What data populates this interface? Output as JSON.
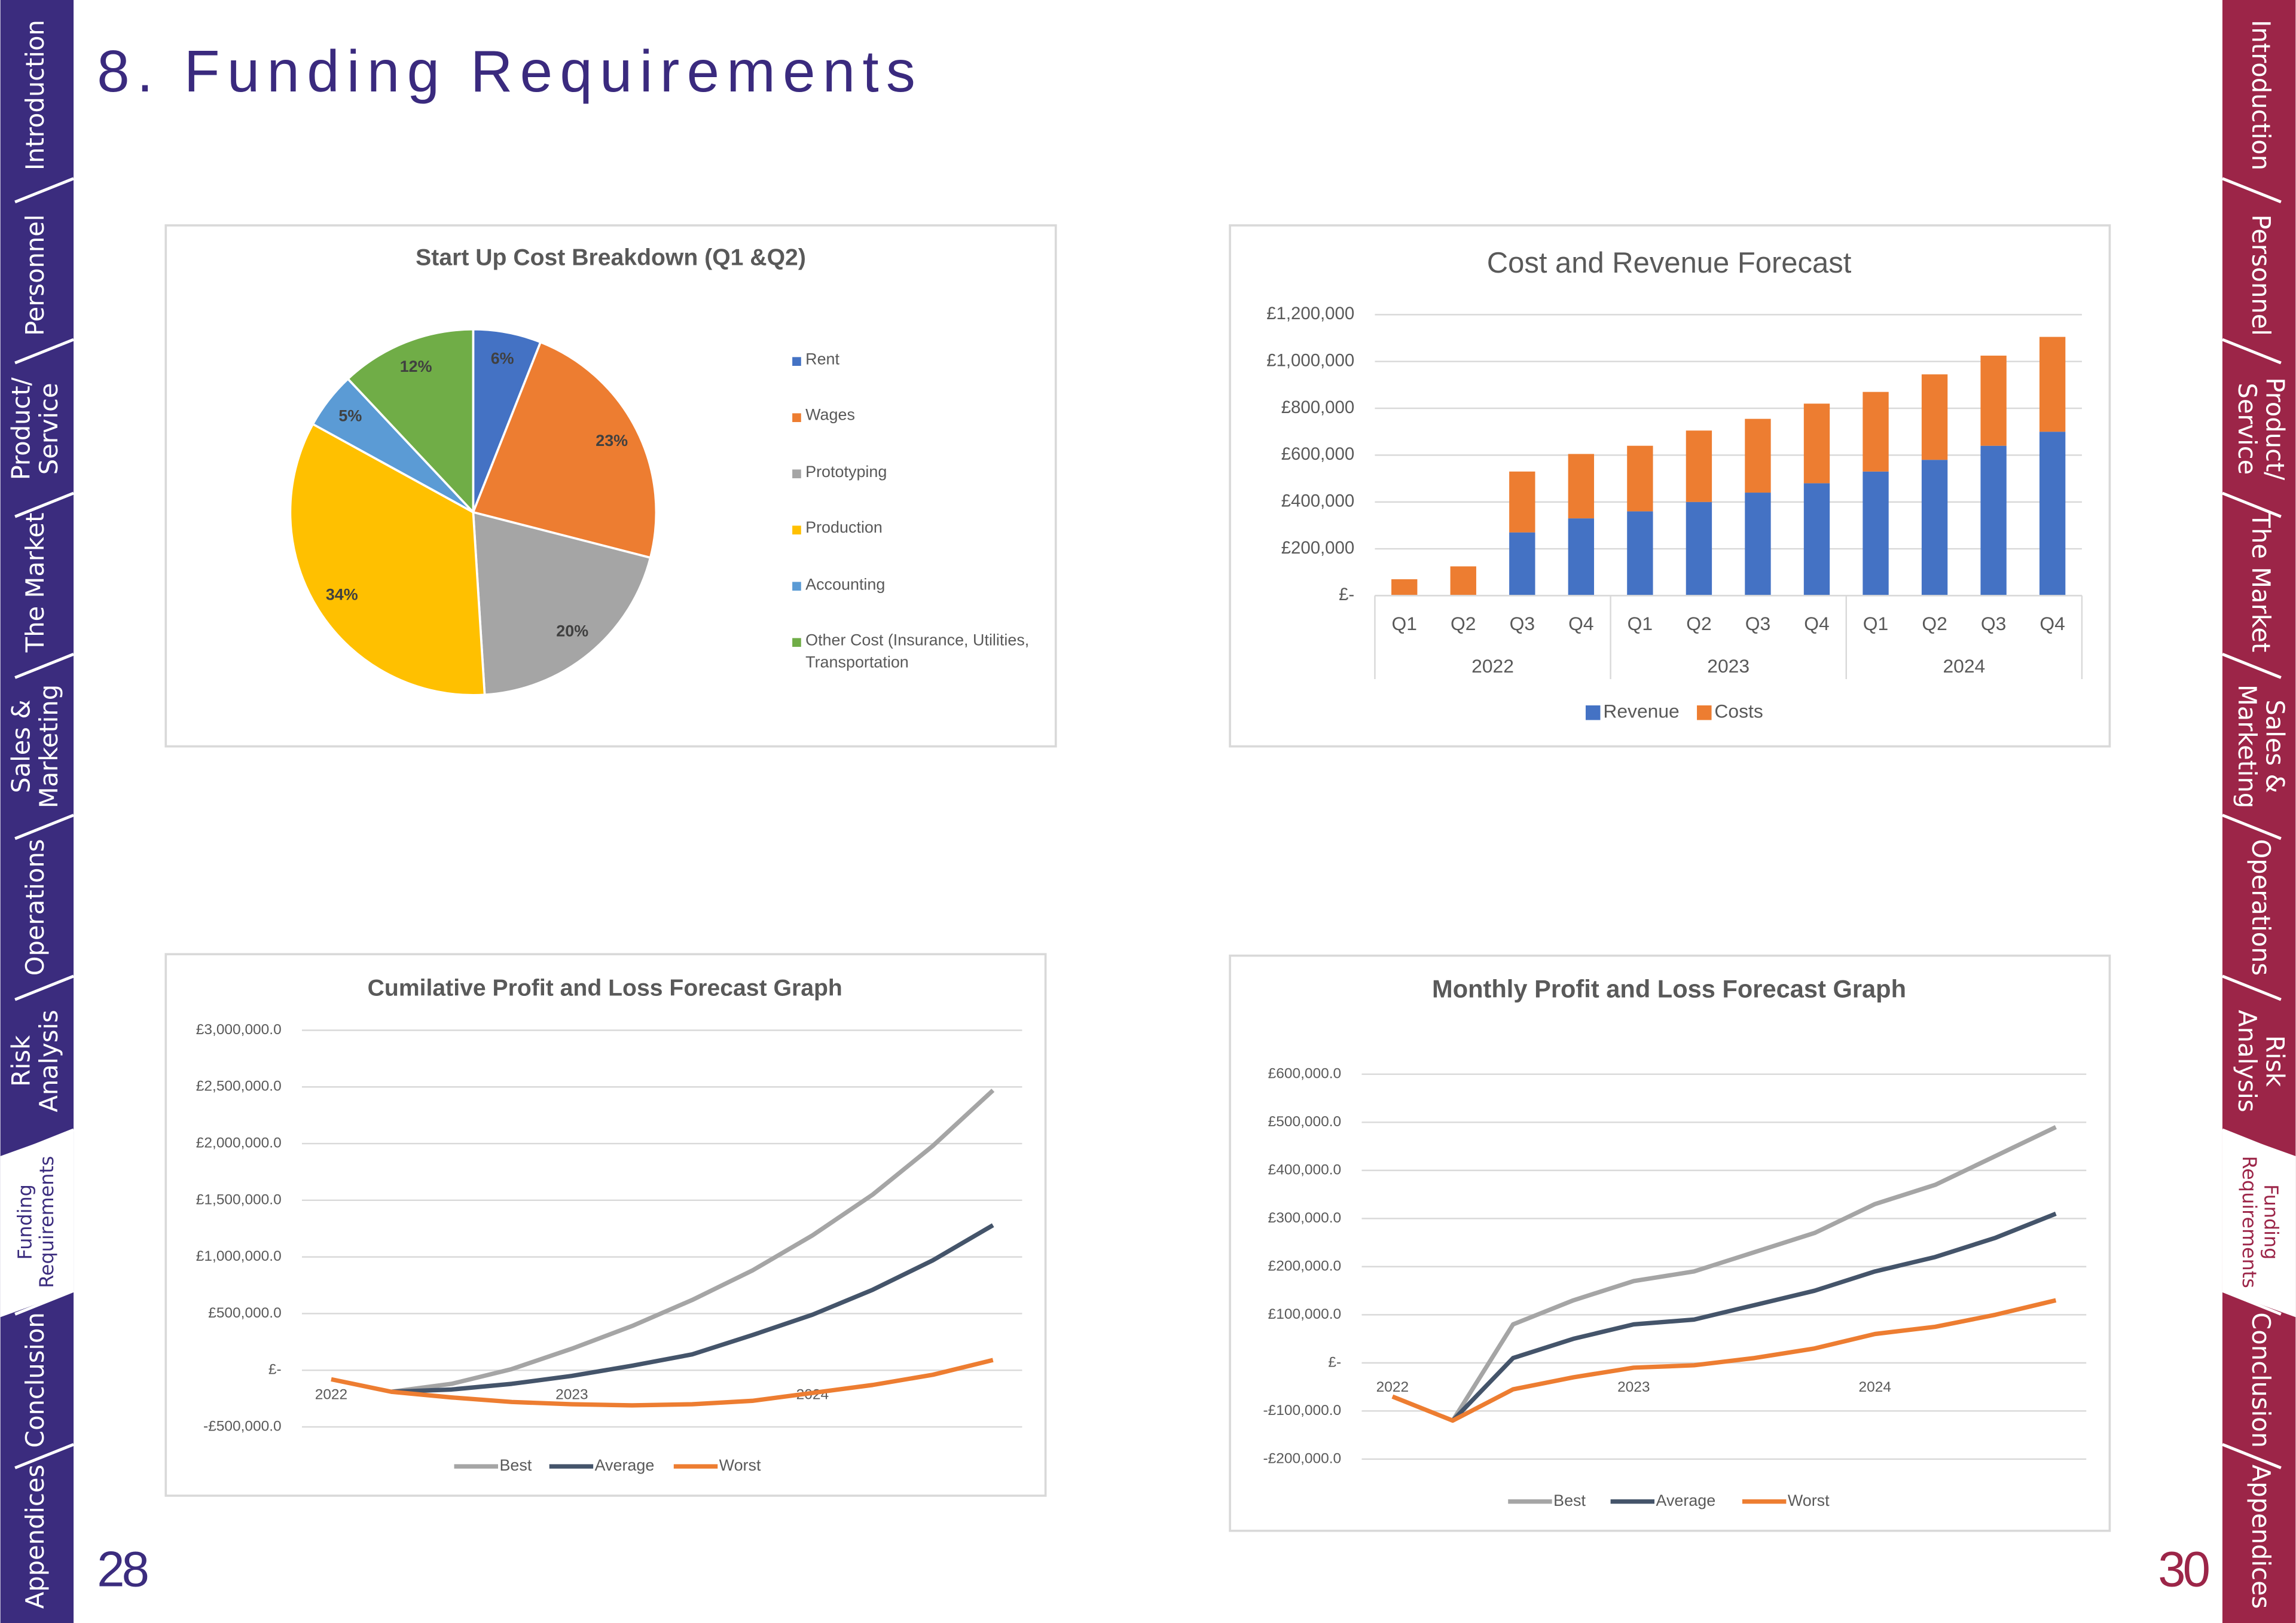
{
  "title": "8. Funding Requirements",
  "left_nav": [
    [
      "Introduction"
    ],
    [
      "Personnel"
    ],
    [
      "Product/",
      "Service"
    ],
    [
      "The Market"
    ],
    [
      "Sales &",
      "Marketing"
    ],
    [
      "Operations"
    ],
    [
      "Risk",
      "Analysis"
    ],
    [
      "Funding",
      "Requirements"
    ],
    [
      "Conclusion"
    ],
    [
      "Appendices"
    ]
  ],
  "right_nav": [
    [
      "Introduction"
    ],
    [
      "Personnel"
    ],
    [
      "Product/",
      "Service"
    ],
    [
      "The Market"
    ],
    [
      "Sales &",
      "Marketing"
    ],
    [
      "Operations"
    ],
    [
      "Risk",
      "Analysis"
    ],
    [
      "Funding",
      "Requirements"
    ],
    [
      "Conclusion"
    ],
    [
      "Appendices"
    ]
  ],
  "page_numbers": [
    "28",
    "30"
  ],
  "chart_data": [
    {
      "type": "pie",
      "title": "Start Up Cost Breakdown (Q1 &Q2)",
      "categories": [
        "Rent",
        "Wages",
        "Prototyping",
        "Production",
        "Accounting",
        "Other Cost (Insurance, Utilities, Transportation"
      ],
      "values": [
        6,
        23,
        20,
        34,
        5,
        12
      ],
      "value_labels": [
        "6%",
        "23%",
        "20%",
        "34%",
        "5%",
        "12%"
      ],
      "colors": [
        "#4472c4",
        "#ed7d31",
        "#a5a5a5",
        "#ffc000",
        "#5b9bd5",
        "#70ad47"
      ],
      "legend": "right"
    },
    {
      "type": "bar",
      "stacked": true,
      "title": "Cost and Revenue Forecast",
      "categories": [
        "Q1",
        "Q2",
        "Q3",
        "Q4",
        "Q1",
        "Q2",
        "Q3",
        "Q4",
        "Q1",
        "Q2",
        "Q3",
        "Q4"
      ],
      "category_groups": [
        "2022",
        "2023",
        "2024"
      ],
      "series": [
        {
          "name": "Revenue",
          "color": "#4472c4",
          "values": [
            0,
            0,
            270000,
            330000,
            360000,
            400000,
            440000,
            480000,
            530000,
            580000,
            640000,
            700000
          ]
        },
        {
          "name": "Costs",
          "color": "#ed7d31",
          "values": [
            70000,
            125000,
            260000,
            275000,
            280000,
            305000,
            315000,
            340000,
            340000,
            365000,
            385000,
            405000
          ]
        }
      ],
      "ylim": [
        0,
        1200000
      ],
      "yticks": [
        {
          "value": 0,
          "label": "£-"
        },
        {
          "value": 200000,
          "label": "£200,000"
        },
        {
          "value": 400000,
          "label": "£400,000"
        },
        {
          "value": 600000,
          "label": "£600,000"
        },
        {
          "value": 800000,
          "label": "£800,000"
        },
        {
          "value": 1000000,
          "label": "£1,000,000"
        },
        {
          "value": 1200000,
          "label": "£1,200,000"
        }
      ],
      "grid": true,
      "legend": "bottom"
    },
    {
      "type": "line",
      "title": "Cumilative Profit and Loss Forecast Graph",
      "categories": [
        "2022",
        null,
        null,
        null,
        "2023",
        null,
        null,
        null,
        "2024",
        null,
        null,
        null
      ],
      "series": [
        {
          "name": "Best",
          "color": "#a5a5a5",
          "values": [
            null,
            -190000,
            -120000,
            10000,
            190000,
            390000,
            620000,
            880000,
            1190000,
            1550000,
            1980000,
            2470000
          ]
        },
        {
          "name": "Average",
          "color": "#44546a",
          "values": [
            null,
            -190000,
            -170000,
            -120000,
            -50000,
            40000,
            140000,
            310000,
            490000,
            710000,
            970000,
            1280000
          ]
        },
        {
          "name": "Worst",
          "color": "#ed7d31",
          "values": [
            -80000,
            -190000,
            -240000,
            -280000,
            -300000,
            -310000,
            -300000,
            -270000,
            -200000,
            -130000,
            -40000,
            90000
          ]
        }
      ],
      "ylim": [
        -500000,
        3000000
      ],
      "yticks": [
        {
          "value": -500000,
          "label": "-£500,000.0"
        },
        {
          "value": 0,
          "label": "£-"
        },
        {
          "value": 500000,
          "label": "£500,000.0"
        },
        {
          "value": 1000000,
          "label": "£1,000,000.0"
        },
        {
          "value": 1500000,
          "label": "£1,500,000.0"
        },
        {
          "value": 2000000,
          "label": "£2,000,000.0"
        },
        {
          "value": 2500000,
          "label": "£2,500,000.0"
        },
        {
          "value": 3000000,
          "label": "£3,000,000.0"
        }
      ],
      "grid": true,
      "legend": "bottom"
    },
    {
      "type": "line",
      "title": "Monthly Profit and Loss Forecast Graph",
      "categories": [
        "2022",
        null,
        null,
        null,
        "2023",
        null,
        null,
        null,
        "2024",
        null,
        null,
        null
      ],
      "series": [
        {
          "name": "Best",
          "color": "#a5a5a5",
          "values": [
            null,
            -120000,
            80000,
            130000,
            170000,
            190000,
            230000,
            270000,
            330000,
            370000,
            430000,
            490000
          ]
        },
        {
          "name": "Average",
          "color": "#44546a",
          "values": [
            null,
            -120000,
            10000,
            50000,
            80000,
            90000,
            120000,
            150000,
            190000,
            220000,
            260000,
            310000
          ]
        },
        {
          "name": "Worst",
          "color": "#ed7d31",
          "values": [
            -70000,
            -120000,
            -55000,
            -30000,
            -10000,
            -5000,
            10000,
            30000,
            60000,
            75000,
            100000,
            130000
          ]
        }
      ],
      "ylim": [
        -200000,
        600000
      ],
      "yticks": [
        {
          "value": -200000,
          "label": "-£200,000.0"
        },
        {
          "value": -100000,
          "label": "-£100,000.0"
        },
        {
          "value": 0,
          "label": "£-"
        },
        {
          "value": 100000,
          "label": "£100,000.0"
        },
        {
          "value": 200000,
          "label": "£200,000.0"
        },
        {
          "value": 300000,
          "label": "£300,000.0"
        },
        {
          "value": 400000,
          "label": "£400,000.0"
        },
        {
          "value": 500000,
          "label": "£500,000.0"
        },
        {
          "value": 600000,
          "label": "£600,000.0"
        }
      ],
      "grid": true,
      "legend": "bottom"
    }
  ]
}
